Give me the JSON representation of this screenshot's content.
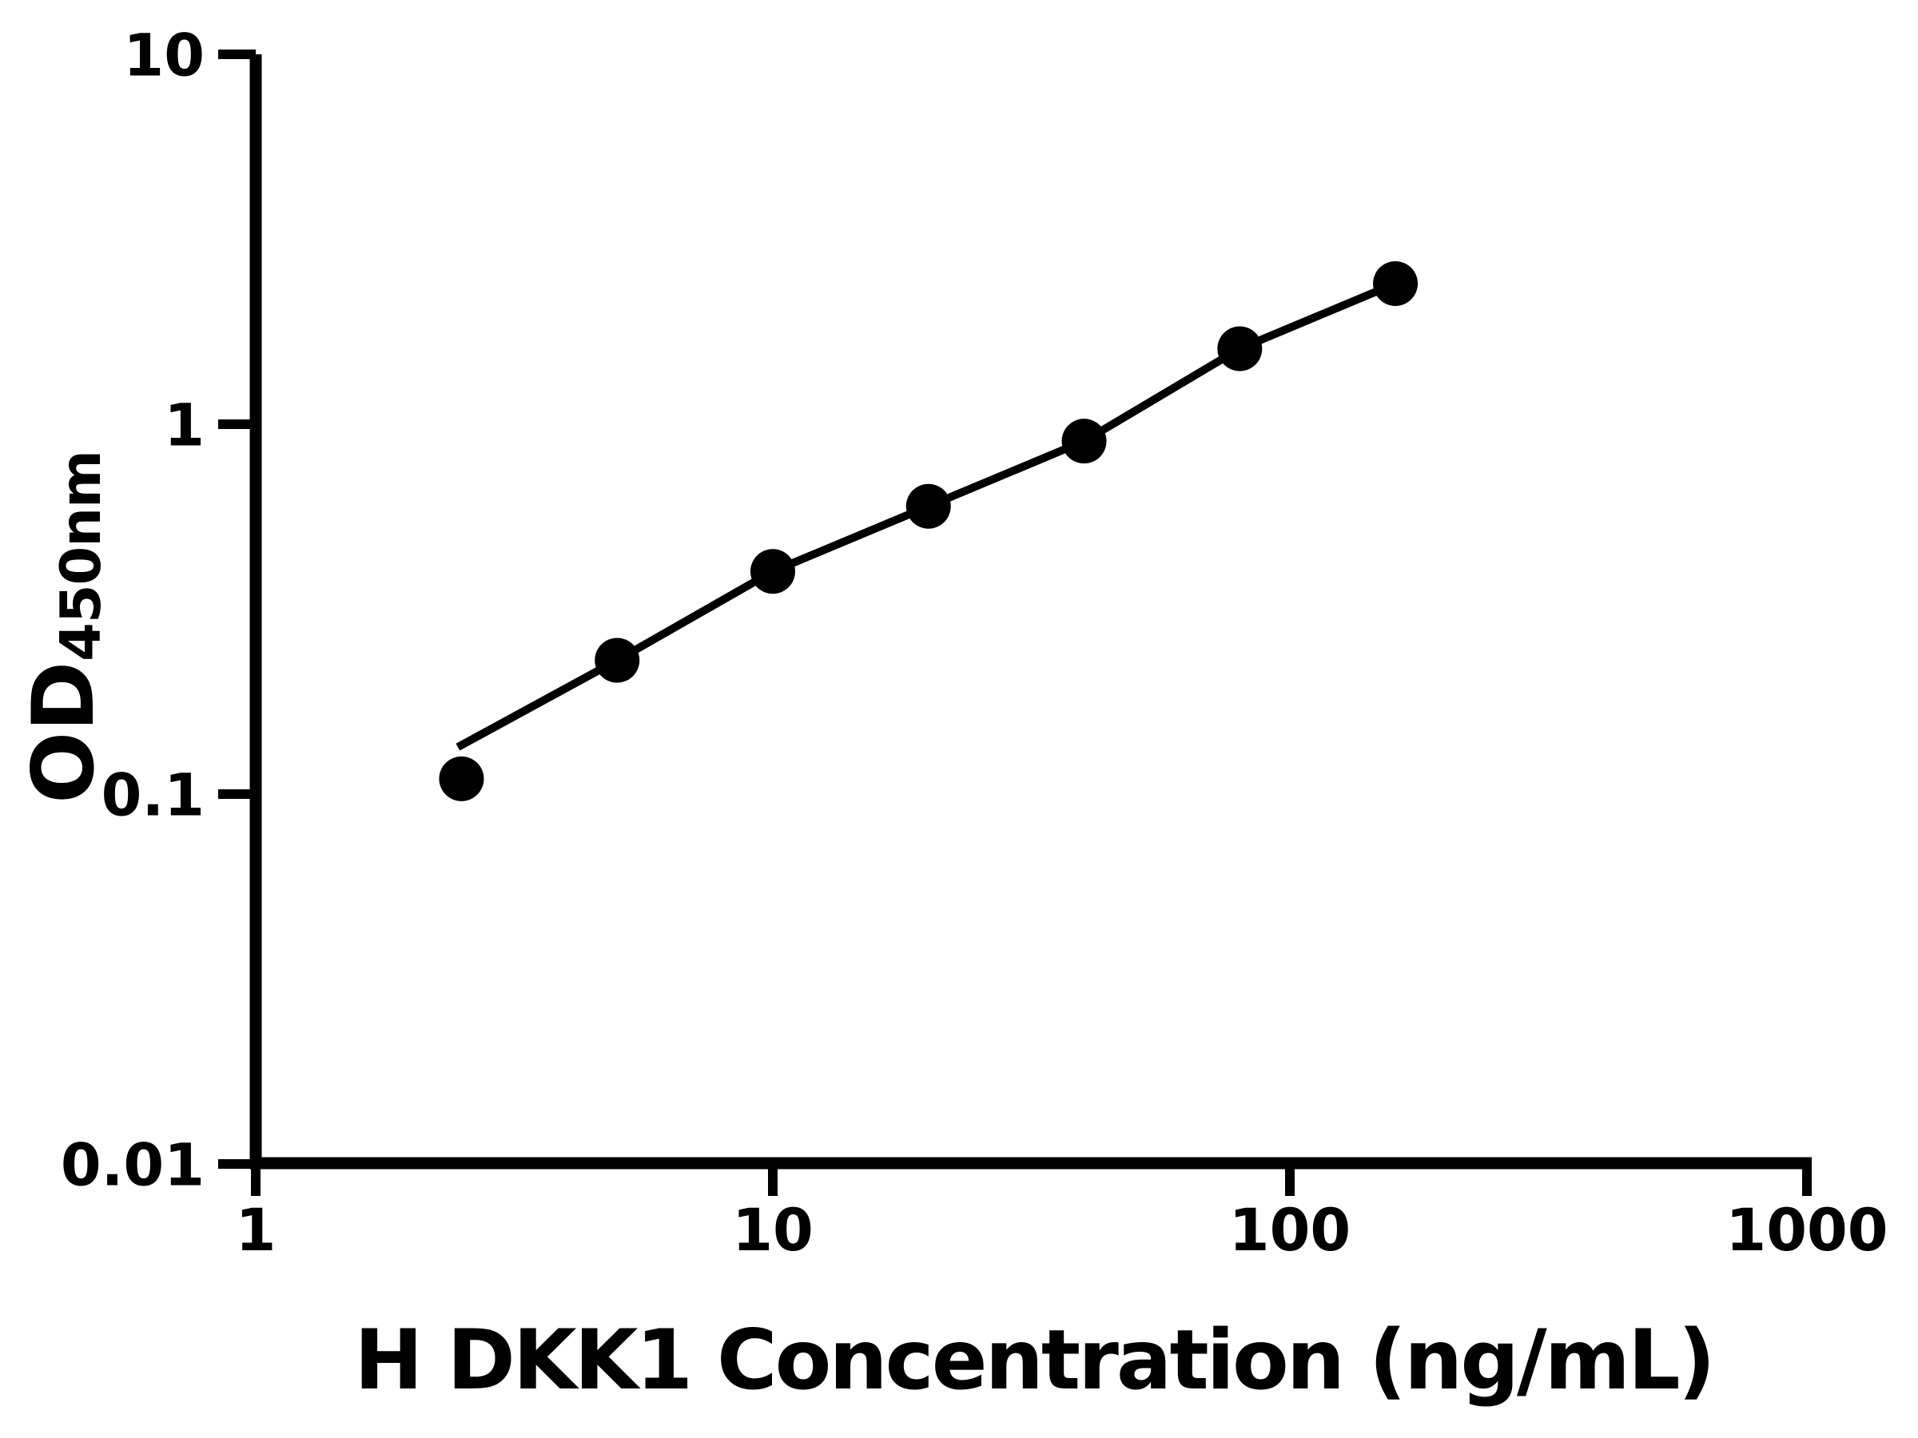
{
  "chart_data": {
    "type": "scatter",
    "subtype": "log-log standard curve with fitted line",
    "xlabel": "H DKK1 Concentration (ng/mL)",
    "ylabel_main": "OD",
    "ylabel_sub": "450nm",
    "xscale": "log",
    "yscale": "log",
    "xlim": [
      1,
      1000
    ],
    "ylim": [
      0.01,
      10
    ],
    "x_ticks": {
      "values": [
        1,
        10,
        100,
        1000
      ],
      "labels": [
        "1",
        "10",
        "100",
        "1000"
      ]
    },
    "y_ticks": {
      "values": [
        10,
        1,
        0.1,
        0.01
      ],
      "labels": [
        "10",
        "1",
        "0.1",
        "0.01"
      ]
    },
    "points": [
      {
        "x": 2.5,
        "od": 0.11
      },
      {
        "x": 5,
        "od": 0.23
      },
      {
        "x": 10,
        "od": 0.4
      },
      {
        "x": 20,
        "od": 0.6
      },
      {
        "x": 40,
        "od": 0.9
      },
      {
        "x": 80,
        "od": 1.6
      },
      {
        "x": 160,
        "od": 2.4
      }
    ],
    "trend_line": {
      "start": {
        "x": 2.46,
        "od": 0.134
      },
      "passes_through_points_from_index": 1,
      "ends_at_last_point": true
    },
    "grid": false,
    "legend": "none",
    "colors": {
      "marker": "#000000",
      "line": "#000000",
      "axis": "#000000",
      "background": "#ffffff"
    }
  }
}
